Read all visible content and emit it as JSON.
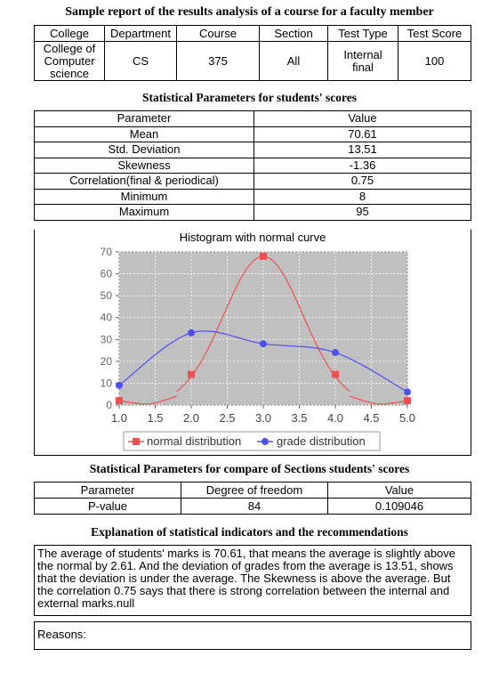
{
  "report": {
    "title": "Sample report of the results analysis of a course for a faculty member"
  },
  "course_table": {
    "headers": [
      "College",
      "Department",
      "Course",
      "Section",
      "Test Type",
      "Test Score"
    ],
    "values": [
      "College of Computer science",
      "CS",
      "375",
      "All",
      "Internal final",
      "100"
    ]
  },
  "stats": {
    "title": "Statistical Parameters for students' scores",
    "header_param": "Parameter",
    "header_value": "Value",
    "rows": [
      {
        "param": "Mean",
        "value": "70.61"
      },
      {
        "param": "Std. Deviation",
        "value": "13.51"
      },
      {
        "param": "Skewness",
        "value": "-1.36"
      },
      {
        "param": "Correlation(final & periodical)",
        "value": "0.75"
      },
      {
        "param": "Minimum",
        "value": "8"
      },
      {
        "param": "Maximum",
        "value": "95"
      }
    ]
  },
  "chart_data": {
    "type": "line",
    "title": "Histogram with normal curve",
    "xlabel": "",
    "ylabel": "",
    "xlim": [
      1.0,
      5.0
    ],
    "ylim": [
      0,
      70
    ],
    "x_ticks": [
      "1.0",
      "1.5",
      "2.0",
      "2.5",
      "3.0",
      "3.5",
      "4.0",
      "4.5",
      "5.0"
    ],
    "y_ticks": [
      "0",
      "10",
      "20",
      "30",
      "40",
      "50",
      "60",
      "70"
    ],
    "grid": true,
    "legend_position": "bottom",
    "series": [
      {
        "name": "normal distribution",
        "color": "#f05050",
        "marker": "square",
        "x": [
          1,
          2,
          3,
          4,
          5
        ],
        "y": [
          2,
          14,
          68,
          14,
          2
        ]
      },
      {
        "name": "grade distribution",
        "color": "#5050f0",
        "marker": "circle",
        "x": [
          1,
          2,
          3,
          4,
          5
        ],
        "y": [
          9,
          33,
          28,
          24,
          6
        ]
      }
    ]
  },
  "sections": {
    "title": "Statistical Parameters for compare of Sections students' scores",
    "headers": [
      "Parameter",
      "Degree of freedom",
      "Value"
    ],
    "row": [
      "P-value",
      "84",
      "0.109046"
    ]
  },
  "explanation": {
    "title": "Explanation of statistical indicators and the recommendations",
    "text": "The average of students' marks is 70.61, that means the average is slightly above the normal by 2.61. And the deviation of grades from the average is 13.51, shows that the deviation is  under  the average. The Skewness is above the average. But the correlation 0.75 says that there is strong correlation between the internal and external marks.null"
  },
  "reasons": {
    "label": "Reasons:"
  }
}
